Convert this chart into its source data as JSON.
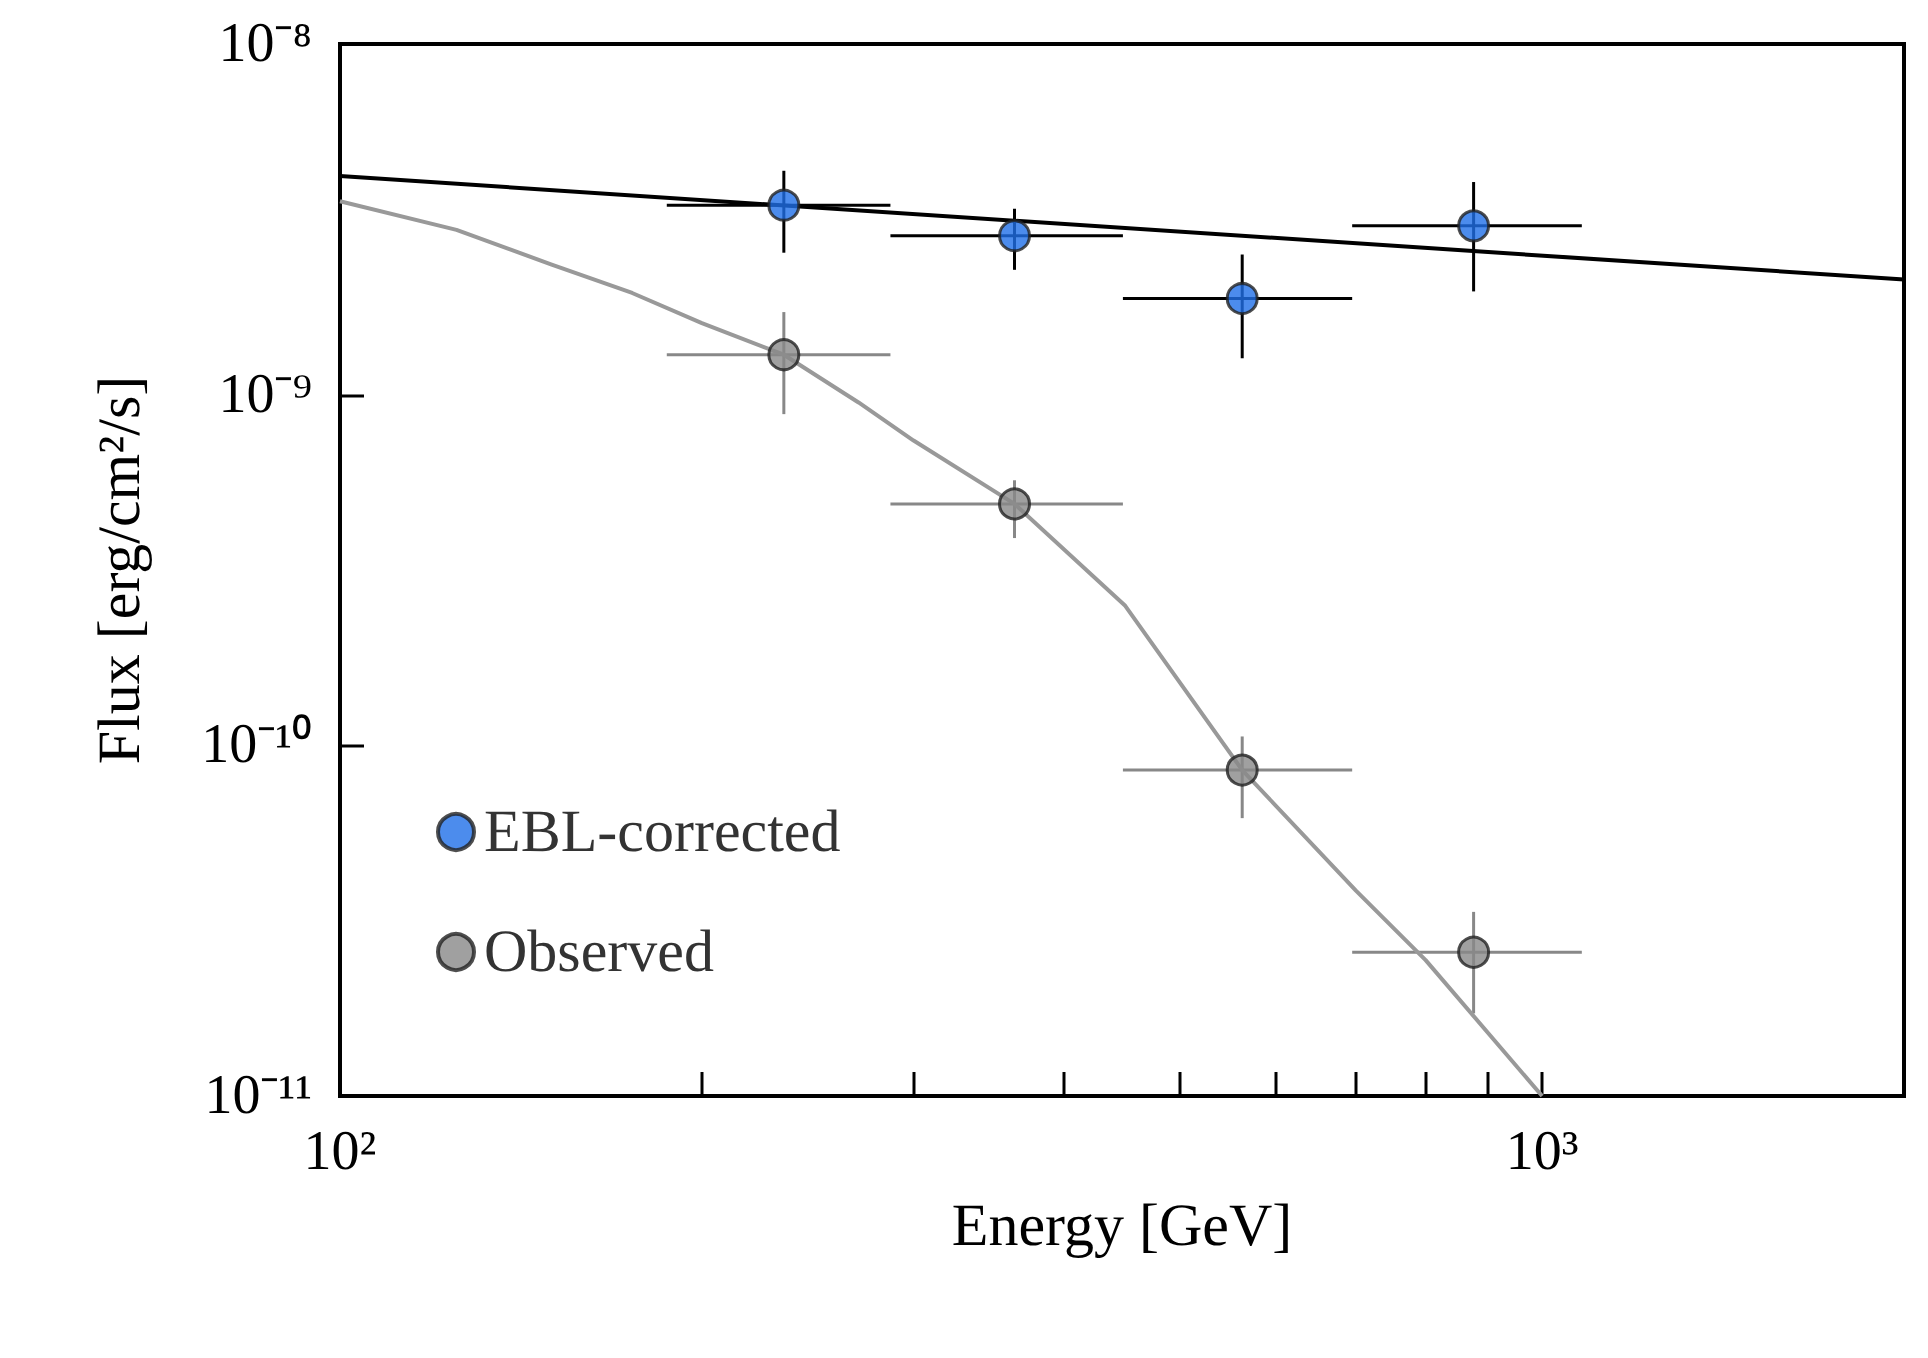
{
  "chart_data": {
    "type": "scatter",
    "xlabel": "Energy [GeV]",
    "ylabel": "Flux [erg/cm²/s]",
    "log": "xy",
    "xlim": [
      100,
      2000
    ],
    "ylim": [
      1e-11,
      1e-08
    ],
    "xticks": [
      {
        "value": 100,
        "label": "10²"
      },
      {
        "value": 200,
        "label": null
      },
      {
        "value": 300,
        "label": null
      },
      {
        "value": 400,
        "label": null
      },
      {
        "value": 500,
        "label": null
      },
      {
        "value": 600,
        "label": null
      },
      {
        "value": 700,
        "label": null
      },
      {
        "value": 800,
        "label": null
      },
      {
        "value": 900,
        "label": null
      },
      {
        "value": 1000,
        "label": "10³"
      }
    ],
    "yticks": [
      {
        "value": 1e-11,
        "label": "10⁻¹¹"
      },
      {
        "value": 1e-10,
        "label": "10⁻¹⁰"
      },
      {
        "value": 1e-09,
        "label": "10⁻⁹"
      },
      {
        "value": 1e-08,
        "label": "10⁻⁸"
      }
    ],
    "grid": false,
    "legend": "bottom left",
    "marker": "circle",
    "series": [
      {
        "name": "EBL-corrected",
        "color": "#1f6fe8",
        "x": [
          234,
          364,
          563,
          877
        ],
        "values": [
          3.47e-09,
          2.84e-09,
          1.88e-09,
          3.03e-09
        ],
        "errors": [
          [
            2.54e-09,
            4.35e-09
          ],
          [
            2.27e-09,
            3.39e-09
          ],
          [
            1.27e-09,
            2.51e-09
          ],
          [
            1.97e-09,
            4.04e-09
          ]
        ],
        "xerrors": [
          [
            187,
            287
          ],
          [
            287,
            448
          ],
          [
            448,
            695
          ],
          [
            695,
            1079
          ]
        ]
      },
      {
        "name": "Observed",
        "color": "#888888",
        "x": [
          234,
          364,
          563,
          877
        ],
        "values": [
          1.3e-09,
          4.88e-10,
          8.5e-11,
          2.57e-11
        ],
        "errors": [
          [
            8.8e-10,
            1.72e-09
          ],
          [
            3.9e-10,
            5.7e-10
          ],
          [
            6.2e-11,
            1.06e-10
          ],
          [
            1.72e-11,
            3.35e-11
          ]
        ],
        "xerrors": [
          [
            187,
            287
          ],
          [
            287,
            448
          ],
          [
            448,
            695
          ],
          [
            695,
            1079
          ]
        ]
      },
      {
        "type": "line",
        "marker": "none",
        "color": "#000000",
        "x": [
          100,
          2000
        ],
        "values": [
          4.2e-09,
          2.13e-09
        ]
      },
      {
        "type": "line",
        "marker": "none",
        "color": "#999999",
        "x": [
          100,
          125,
          150,
          175,
          200,
          234,
          270,
          300,
          364,
          450,
          563,
          700,
          800,
          1000
        ],
        "values": [
          3.56e-09,
          2.95e-09,
          2.35e-09,
          1.95e-09,
          1.6e-09,
          1.3e-09,
          9.5e-10,
          7.4e-10,
          4.88e-10,
          2.5e-10,
          8.5e-11,
          3.85e-11,
          2.44e-11,
          1e-11
        ]
      }
    ]
  }
}
